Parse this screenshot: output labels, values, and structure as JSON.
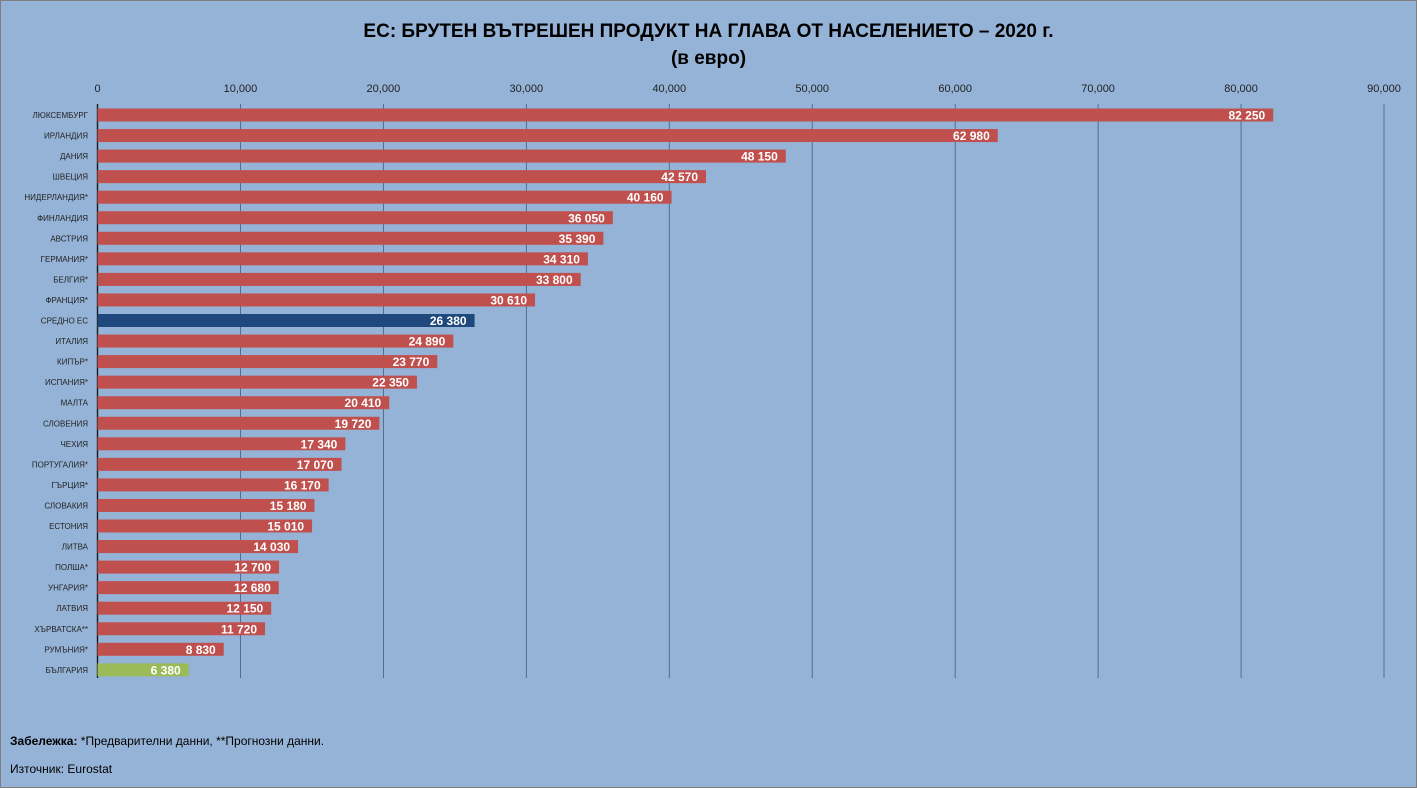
{
  "chart_data": {
    "type": "bar",
    "orientation": "horizontal",
    "title": "ЕС: БРУТЕН ВЪТРЕШЕН ПРОДУКТ НА ГЛАВА ОТ НАСЕЛЕНИЕТО  – 2020 г.",
    "subtitle": "(в евро)",
    "xlim": [
      0,
      90000
    ],
    "x_ticks": [
      "0",
      "10,000",
      "20,000",
      "30,000",
      "40,000",
      "50,000",
      "60,000",
      "70,000",
      "80,000",
      "90,000"
    ],
    "x_tick_values": [
      0,
      10000,
      20000,
      30000,
      40000,
      50000,
      60000,
      70000,
      80000,
      90000
    ],
    "axis_position": "top",
    "grid": true,
    "categories": [
      "ЛЮКСЕМБУРГ",
      "ИРЛАНДИЯ",
      "ДАНИЯ",
      "ШВЕЦИЯ",
      "НИДЕРЛАНДИЯ*",
      "ФИНЛАНДИЯ",
      "АВСТРИЯ",
      "ГЕРМАНИЯ*",
      "БЕЛГИЯ*",
      "ФРАНЦИЯ*",
      "СРЕДНО ЕС",
      "ИТАЛИЯ",
      "КИПЪР*",
      "ИСПАНИЯ*",
      "МАЛТА",
      "СЛОВЕНИЯ",
      "ЧЕХИЯ",
      "ПОРТУГАЛИЯ*",
      "ГЪРЦИЯ*",
      "СЛОВАКИЯ",
      "ЕСТОНИЯ",
      "ЛИТВА",
      "ПОЛША*",
      "УНГАРИЯ*",
      "ЛАТВИЯ",
      "ХЪРВАТСКА**",
      "РУМЪНИЯ*",
      "БЪЛГАРИЯ"
    ],
    "values": [
      82250,
      62980,
      48150,
      42570,
      40160,
      36050,
      35390,
      34310,
      33800,
      30610,
      26380,
      24890,
      23770,
      22350,
      20410,
      19720,
      17340,
      17070,
      16170,
      15180,
      15010,
      14030,
      12700,
      12680,
      12150,
      11720,
      8830,
      6380
    ],
    "value_labels": [
      "82 250",
      "62 980",
      "48 150",
      "42 570",
      "40 160",
      "36 050",
      "35 390",
      "34 310",
      "33 800",
      "30 610",
      "26 380",
      "24 890",
      "23 770",
      "22 350",
      "20 410",
      "19 720",
      "17 340",
      "17 070",
      "16 170",
      "15 180",
      "15 010",
      "14 030",
      "12 700",
      "12 680",
      "12 150",
      "11 720",
      "8 830",
      "6 380"
    ],
    "colors": {
      "default": "#c0504d",
      "highlight": {
        "СРЕДНО ЕС": "#1f497d",
        "БЪЛГАРИЯ": "#9bbb59"
      },
      "background": "#95b3d7",
      "grid": "#3f5f7f"
    }
  },
  "footer": {
    "note_label": "Забележка:",
    "note_text": " *Предварителни данни, **Прогнозни данни.",
    "source": "Източник: Eurostat"
  }
}
